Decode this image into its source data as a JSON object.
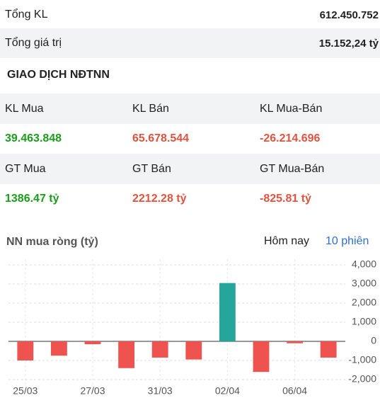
{
  "summary": [
    {
      "label": "Tổng KL",
      "value": "612.450.752"
    },
    {
      "label": "Tổng giá trị",
      "value": "15.152,24 tỷ"
    }
  ],
  "section_title": "GIAO DỊCH NĐTNN",
  "table": {
    "rows": [
      [
        "KL Mua",
        "KL Bán",
        "KL Mua-Bán"
      ],
      [
        "39.463.848",
        "65.678.544",
        "-26.214.696"
      ],
      [
        "GT Mua",
        "GT Bán",
        "GT Mua-Bán"
      ],
      [
        "1386.47 tỷ",
        "2212.28 tỷ",
        "-825.81 tỷ"
      ]
    ]
  },
  "tabs": [
    "Hôm nay",
    "10 phiên"
  ],
  "chart_data": {
    "type": "bar",
    "title": "NN mua ròng (tỷ)",
    "categories": [
      "25/03",
      null,
      "27/03",
      null,
      "31/03",
      null,
      "02/04",
      null,
      "06/04",
      null
    ],
    "values": [
      -1000,
      -750,
      -150,
      -1400,
      -850,
      -950,
      3050,
      -1600,
      -100,
      -850
    ],
    "positive_color": "#26a69a",
    "negative_color": "#ef5350",
    "ylim": [
      -2000,
      4000
    ],
    "yticks": [
      {
        "value": 4000,
        "label": "4,000"
      },
      {
        "value": 3000,
        "label": "3,000"
      },
      {
        "value": 2000,
        "label": "2,000"
      },
      {
        "value": 1000,
        "label": "1,000"
      },
      0,
      {
        "value": -1000,
        "label": "-1,000"
      },
      {
        "value": -2000,
        "label": "-2,000"
      }
    ],
    "grid": true
  }
}
